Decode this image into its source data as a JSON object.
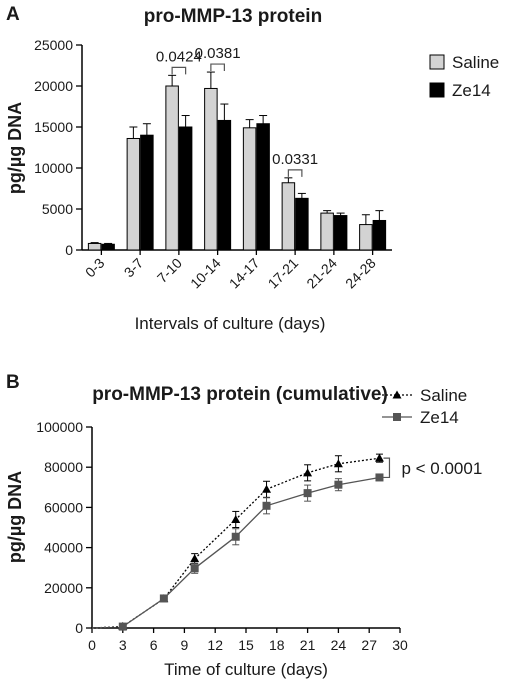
{
  "chart_data": [
    {
      "panel": "A",
      "type": "bar",
      "title": "pro-MMP-13 protein",
      "ylabel": "pg/µg DNA",
      "xlabel": "Intervals of culture (days)",
      "ylim": [
        0,
        25000
      ],
      "yticks": [
        0,
        5000,
        10000,
        15000,
        20000,
        25000
      ],
      "categories": [
        "0-3",
        "3-7",
        "7-10",
        "10-14",
        "14-17",
        "17-21",
        "21-24",
        "24-28"
      ],
      "series": [
        {
          "name": "Saline",
          "color": "#d3d3d3",
          "values": [
            800,
            13600,
            20000,
            19700,
            14900,
            8200,
            4500,
            3100
          ],
          "errors": [
            100,
            1400,
            1300,
            2000,
            1000,
            600,
            300,
            1200
          ]
        },
        {
          "name": "Ze14",
          "color": "#000000",
          "values": [
            700,
            14000,
            15000,
            15800,
            15400,
            6300,
            4200,
            3600
          ],
          "errors": [
            100,
            1400,
            1400,
            2000,
            1000,
            600,
            300,
            1200
          ]
        }
      ],
      "annotations": [
        {
          "category": "7-10",
          "text": "0.0424"
        },
        {
          "category": "10-14",
          "text": "0.0381"
        },
        {
          "category": "17-21",
          "text": "0.0331"
        }
      ],
      "legend_position": "top-right"
    },
    {
      "panel": "B",
      "type": "line",
      "title": "pro-MMP-13 protein (cumulative)",
      "ylabel": "pg/µg DNA",
      "xlabel": "Time of culture (days)",
      "xlim": [
        0,
        30
      ],
      "ylim": [
        0,
        100000
      ],
      "xticks": [
        0,
        3,
        6,
        9,
        12,
        15,
        18,
        21,
        24,
        27,
        30
      ],
      "yticks": [
        0,
        20000,
        40000,
        60000,
        80000,
        100000
      ],
      "x": [
        3,
        7,
        10,
        14,
        17,
        21,
        24,
        28
      ],
      "series": [
        {
          "name": "Saline",
          "marker": "triangle",
          "line": "dotted",
          "color": "#000000",
          "values": [
            800,
            14600,
            34500,
            54000,
            69000,
            77200,
            81700,
            84500
          ],
          "errors": [
            300,
            1000,
            2500,
            4000,
            4000,
            4000,
            4000,
            2000
          ]
        },
        {
          "name": "Ze14",
          "marker": "square",
          "line": "solid",
          "color": "#555555",
          "values": [
            700,
            14700,
            29700,
            45400,
            60800,
            67100,
            71300,
            74900
          ],
          "errors": [
            300,
            1000,
            2500,
            4000,
            4000,
            4000,
            3000,
            1500
          ]
        }
      ],
      "annotations": [
        {
          "text": "p < 0.0001"
        }
      ],
      "legend_position": "top-right"
    }
  ]
}
